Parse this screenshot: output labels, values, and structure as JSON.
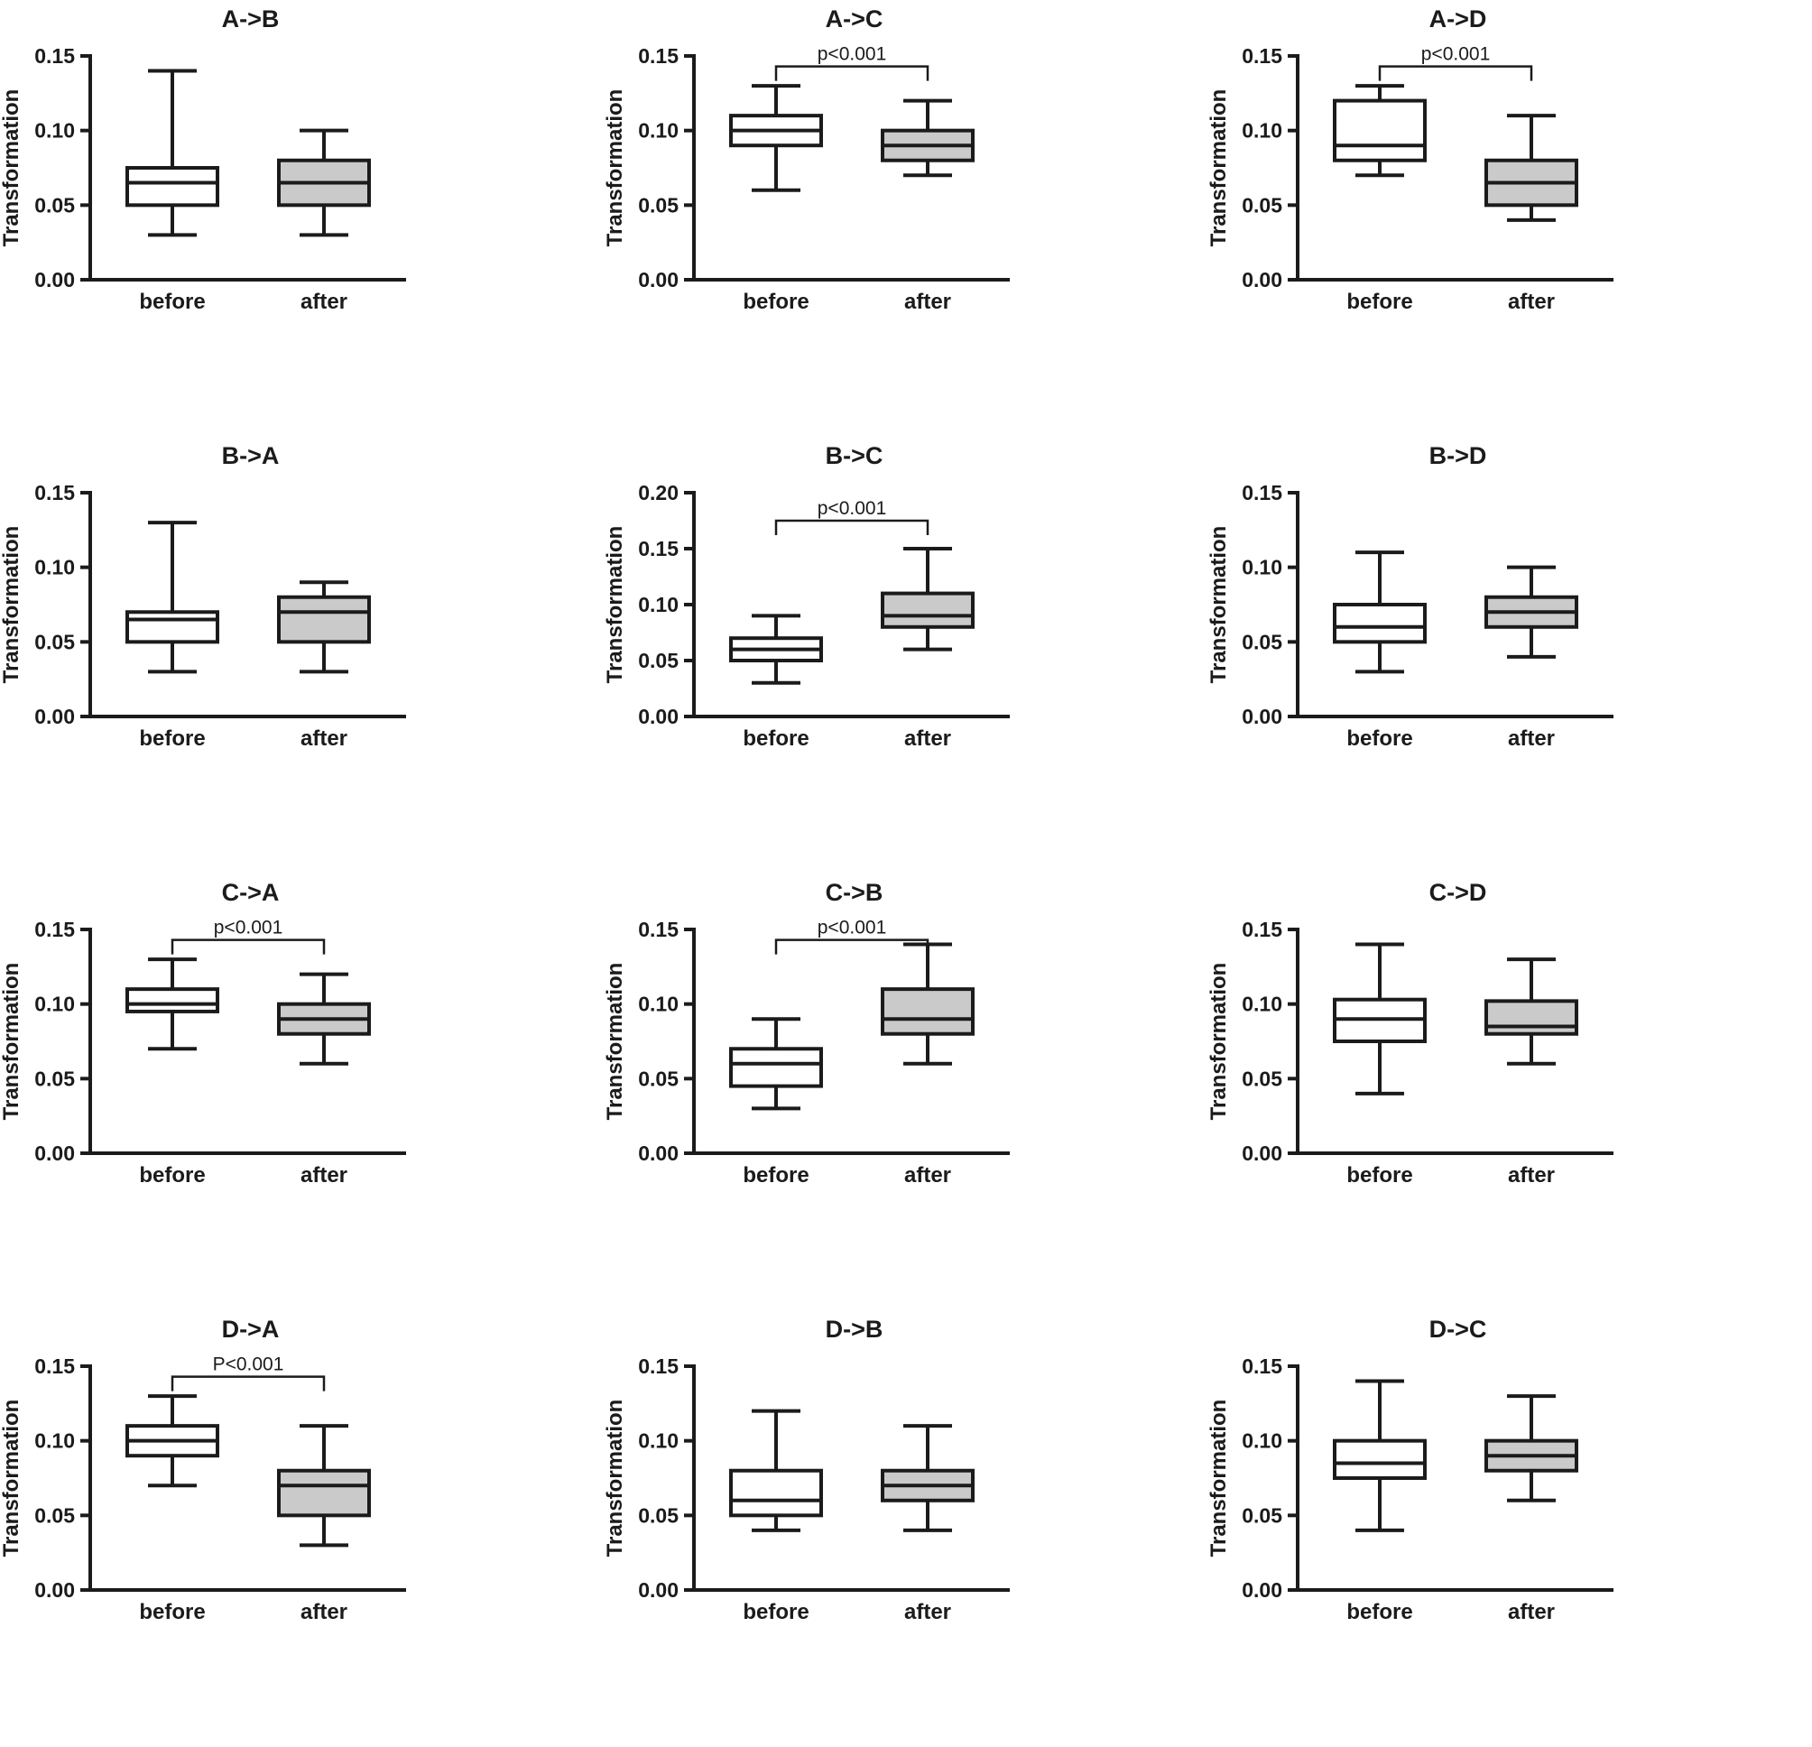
{
  "figure": {
    "ylabel": "Transformation",
    "categories": [
      "before",
      "after"
    ],
    "colors": {
      "before_fill": "#ffffff",
      "after_fill": "#cacaca",
      "line": "#1b1b1b"
    }
  },
  "chart_data": [
    {
      "type": "boxplot",
      "title": "A->B",
      "ylabel": "Transformation",
      "categories": [
        "before",
        "after"
      ],
      "ylim": [
        0,
        0.15
      ],
      "yticks": [
        0,
        0.05,
        0.1,
        0.15
      ],
      "series": [
        {
          "name": "before",
          "min": 0.03,
          "q1": 0.05,
          "median": 0.065,
          "q3": 0.075,
          "max": 0.14
        },
        {
          "name": "after",
          "min": 0.03,
          "q1": 0.05,
          "median": 0.065,
          "q3": 0.08,
          "max": 0.1
        }
      ],
      "significance": null
    },
    {
      "type": "boxplot",
      "title": "A->C",
      "ylabel": "Transformation",
      "categories": [
        "before",
        "after"
      ],
      "ylim": [
        0,
        0.15
      ],
      "yticks": [
        0,
        0.05,
        0.1,
        0.15
      ],
      "series": [
        {
          "name": "before",
          "min": 0.06,
          "q1": 0.09,
          "median": 0.1,
          "q3": 0.11,
          "max": 0.13
        },
        {
          "name": "after",
          "min": 0.07,
          "q1": 0.08,
          "median": 0.09,
          "q3": 0.1,
          "max": 0.12
        }
      ],
      "significance": {
        "label": "p<0.001",
        "level": 0.143
      }
    },
    {
      "type": "boxplot",
      "title": "A->D",
      "ylabel": "Transformation",
      "categories": [
        "before",
        "after"
      ],
      "ylim": [
        0,
        0.15
      ],
      "yticks": [
        0,
        0.05,
        0.1,
        0.15
      ],
      "series": [
        {
          "name": "before",
          "min": 0.07,
          "q1": 0.08,
          "median": 0.09,
          "q3": 0.12,
          "max": 0.13
        },
        {
          "name": "after",
          "min": 0.04,
          "q1": 0.05,
          "median": 0.065,
          "q3": 0.08,
          "max": 0.11
        }
      ],
      "significance": {
        "label": "p<0.001",
        "level": 0.143
      }
    },
    {
      "type": "boxplot",
      "title": "B->A",
      "ylabel": "Transformation",
      "categories": [
        "before",
        "after"
      ],
      "ylim": [
        0,
        0.15
      ],
      "yticks": [
        0,
        0.05,
        0.1,
        0.15
      ],
      "series": [
        {
          "name": "before",
          "min": 0.03,
          "q1": 0.05,
          "median": 0.065,
          "q3": 0.07,
          "max": 0.13
        },
        {
          "name": "after",
          "min": 0.03,
          "q1": 0.05,
          "median": 0.07,
          "q3": 0.08,
          "max": 0.09
        }
      ],
      "significance": null
    },
    {
      "type": "boxplot",
      "title": "B->C",
      "ylabel": "Transformation",
      "categories": [
        "before",
        "after"
      ],
      "ylim": [
        0,
        0.2
      ],
      "yticks": [
        0,
        0.05,
        0.1,
        0.15,
        0.2
      ],
      "series": [
        {
          "name": "before",
          "min": 0.03,
          "q1": 0.05,
          "median": 0.06,
          "q3": 0.07,
          "max": 0.09
        },
        {
          "name": "after",
          "min": 0.06,
          "q1": 0.08,
          "median": 0.09,
          "q3": 0.11,
          "max": 0.15
        }
      ],
      "significance": {
        "label": "p<0.001",
        "level": 0.175
      }
    },
    {
      "type": "boxplot",
      "title": "B->D",
      "ylabel": "Transformation",
      "categories": [
        "before",
        "after"
      ],
      "ylim": [
        0,
        0.15
      ],
      "yticks": [
        0,
        0.05,
        0.1,
        0.15
      ],
      "series": [
        {
          "name": "before",
          "min": 0.03,
          "q1": 0.05,
          "median": 0.06,
          "q3": 0.075,
          "max": 0.11
        },
        {
          "name": "after",
          "min": 0.04,
          "q1": 0.06,
          "median": 0.07,
          "q3": 0.08,
          "max": 0.1
        }
      ],
      "significance": null
    },
    {
      "type": "boxplot",
      "title": "C->A",
      "ylabel": "Transformation",
      "categories": [
        "before",
        "after"
      ],
      "ylim": [
        0,
        0.15
      ],
      "yticks": [
        0,
        0.05,
        0.1,
        0.15
      ],
      "series": [
        {
          "name": "before",
          "min": 0.07,
          "q1": 0.095,
          "median": 0.1,
          "q3": 0.11,
          "max": 0.13
        },
        {
          "name": "after",
          "min": 0.06,
          "q1": 0.08,
          "median": 0.09,
          "q3": 0.1,
          "max": 0.12
        }
      ],
      "significance": {
        "label": "p<0.001",
        "level": 0.143
      }
    },
    {
      "type": "boxplot",
      "title": "C->B",
      "ylabel": "Transformation",
      "categories": [
        "before",
        "after"
      ],
      "ylim": [
        0,
        0.15
      ],
      "yticks": [
        0,
        0.05,
        0.1,
        0.15
      ],
      "series": [
        {
          "name": "before",
          "min": 0.03,
          "q1": 0.045,
          "median": 0.06,
          "q3": 0.07,
          "max": 0.09
        },
        {
          "name": "after",
          "min": 0.06,
          "q1": 0.08,
          "median": 0.09,
          "q3": 0.11,
          "max": 0.14
        }
      ],
      "significance": {
        "label": "p<0.001",
        "level": 0.143
      }
    },
    {
      "type": "boxplot",
      "title": "C->D",
      "ylabel": "Transformation",
      "categories": [
        "before",
        "after"
      ],
      "ylim": [
        0,
        0.15
      ],
      "yticks": [
        0,
        0.05,
        0.1,
        0.15
      ],
      "series": [
        {
          "name": "before",
          "min": 0.04,
          "q1": 0.075,
          "median": 0.09,
          "q3": 0.103,
          "max": 0.14
        },
        {
          "name": "after",
          "min": 0.06,
          "q1": 0.08,
          "median": 0.085,
          "q3": 0.102,
          "max": 0.13
        }
      ],
      "significance": null
    },
    {
      "type": "boxplot",
      "title": "D->A",
      "ylabel": "Transformation",
      "categories": [
        "before",
        "after"
      ],
      "ylim": [
        0,
        0.15
      ],
      "yticks": [
        0,
        0.05,
        0.1,
        0.15
      ],
      "series": [
        {
          "name": "before",
          "min": 0.07,
          "q1": 0.09,
          "median": 0.1,
          "q3": 0.11,
          "max": 0.13
        },
        {
          "name": "after",
          "min": 0.03,
          "q1": 0.05,
          "median": 0.07,
          "q3": 0.08,
          "max": 0.11
        }
      ],
      "significance": {
        "label": "P<0.001",
        "level": 0.143
      }
    },
    {
      "type": "boxplot",
      "title": "D->B",
      "ylabel": "Transformation",
      "categories": [
        "before",
        "after"
      ],
      "ylim": [
        0,
        0.15
      ],
      "yticks": [
        0,
        0.05,
        0.1,
        0.15
      ],
      "series": [
        {
          "name": "before",
          "min": 0.04,
          "q1": 0.05,
          "median": 0.06,
          "q3": 0.08,
          "max": 0.12
        },
        {
          "name": "after",
          "min": 0.04,
          "q1": 0.06,
          "median": 0.07,
          "q3": 0.08,
          "max": 0.11
        }
      ],
      "significance": null
    },
    {
      "type": "boxplot",
      "title": "D->C",
      "ylabel": "Transformation",
      "categories": [
        "before",
        "after"
      ],
      "ylim": [
        0,
        0.15
      ],
      "yticks": [
        0,
        0.05,
        0.1,
        0.15
      ],
      "series": [
        {
          "name": "before",
          "min": 0.04,
          "q1": 0.075,
          "median": 0.085,
          "q3": 0.1,
          "max": 0.14
        },
        {
          "name": "after",
          "min": 0.06,
          "q1": 0.08,
          "median": 0.09,
          "q3": 0.1,
          "max": 0.13
        }
      ],
      "significance": null
    }
  ]
}
